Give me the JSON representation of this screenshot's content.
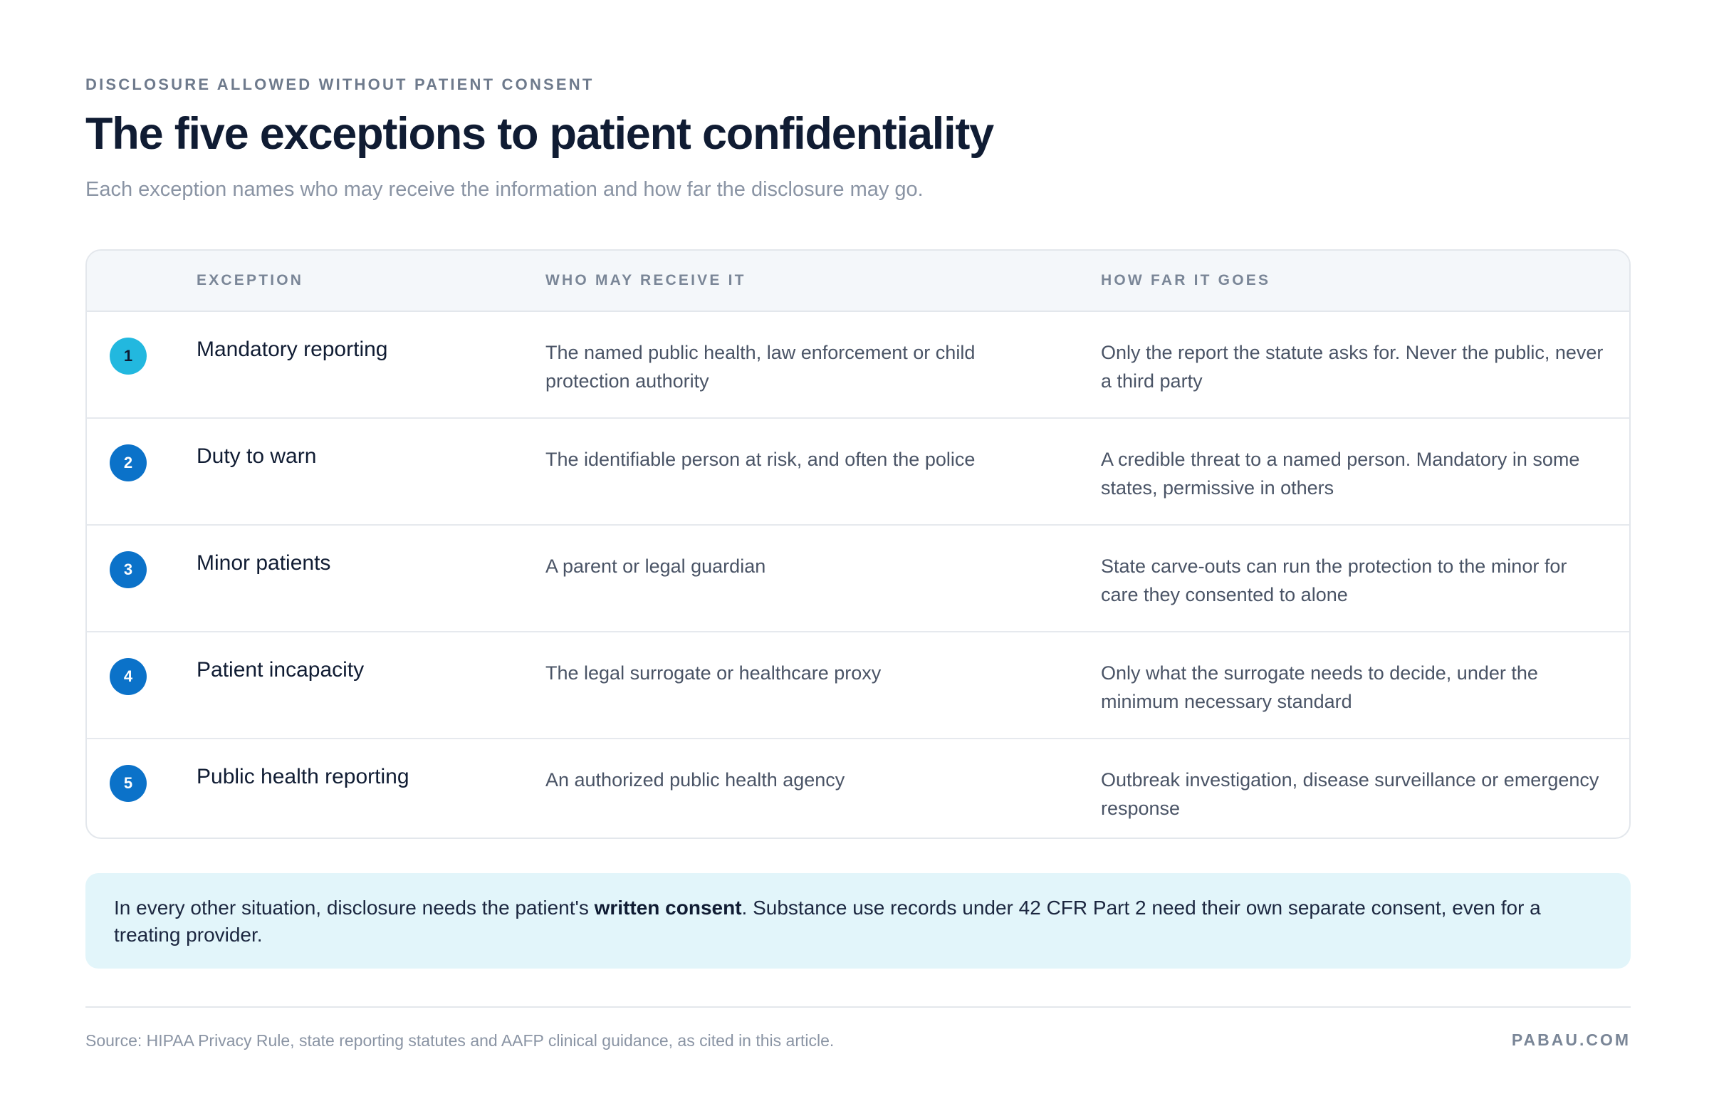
{
  "header": {
    "eyebrow": "DISCLOSURE ALLOWED WITHOUT PATIENT CONSENT",
    "title": "The five exceptions to patient confidentiality",
    "subtitle": "Each exception names who may receive the information and how far the disclosure may go."
  },
  "table": {
    "columns": [
      "EXCEPTION",
      "WHO MAY RECEIVE IT",
      "HOW FAR IT GOES"
    ],
    "rows": [
      {
        "number": "1",
        "exception": "Mandatory reporting",
        "who": "The named public health, law enforcement or child protection authority",
        "how_far": "Only the report the statute asks for. Never the public, never a third party"
      },
      {
        "number": "2",
        "exception": "Duty to warn",
        "who": "The identifiable person at risk, and often the police",
        "how_far": "A credible threat to a named person. Mandatory in some states, permissive in others"
      },
      {
        "number": "3",
        "exception": "Minor patients",
        "who": "A parent or legal guardian",
        "how_far": "State carve-outs can run the protection to the minor for care they consented to alone"
      },
      {
        "number": "4",
        "exception": "Patient incapacity",
        "who": "The legal surrogate or healthcare proxy",
        "how_far": "Only what the surrogate needs to decide, under the minimum necessary standard"
      },
      {
        "number": "5",
        "exception": "Public health reporting",
        "who": "An authorized public health agency",
        "how_far": "Outbreak investigation, disease surveillance or emergency response"
      }
    ]
  },
  "callout": {
    "before": "In every other situation, disclosure needs the patient's ",
    "emphasis": "written consent",
    "after": ". Substance use records under 42 CFR Part 2 need their own separate consent, even for a treating provider."
  },
  "footer": {
    "source": "Source: HIPAA Privacy Rule, state reporting statutes and AAFP clinical guidance, as cited in this article.",
    "brand": "PABAU.COM"
  },
  "colors": {
    "badge_first": "#22b8df",
    "badge": "#0b72c9",
    "callout_bg": "#e2f5fa",
    "header_bg": "#f4f7fa"
  }
}
